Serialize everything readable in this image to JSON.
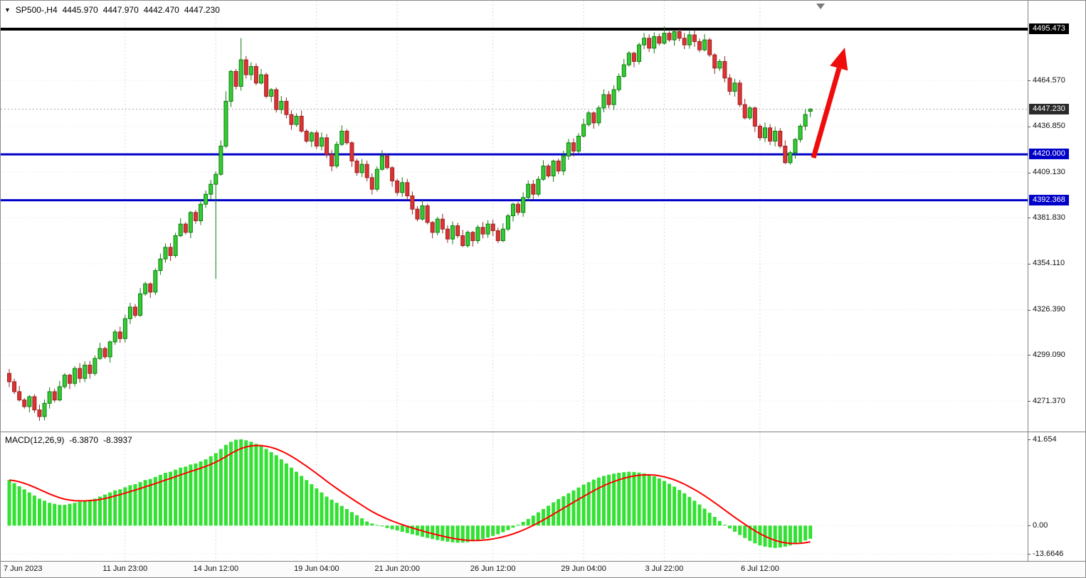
{
  "window": {
    "symbol_info": {
      "expander_icon": "▼",
      "symbol": "SP500-,H4",
      "open": "4445.970",
      "high": "4447.970",
      "low": "4442.470",
      "close": "4447.230"
    }
  },
  "colors": {
    "bull_fill": "#33cc33",
    "bull_border": "#0f7a0f",
    "bear_fill": "#dd3333",
    "bear_border": "#992222",
    "support_line": "#0000c8",
    "resistance_line": "#000000",
    "current_price_line": "#a8a8a8",
    "current_price_box": "#2b2b2b",
    "macd_histogram": "#32e132",
    "macd_signal": "#ff0000",
    "arrow": "#ee0c0c",
    "grid": "#e3e3e3"
  },
  "price_axis": {
    "levels": [
      "4464.570",
      "4436.850",
      "4409.130",
      "4381.830",
      "4354.110",
      "4326.390",
      "4299.090",
      "4271.370"
    ],
    "resistance_label": "4495.473",
    "current_label": "4447.230",
    "support_labels": [
      "4420.000",
      "4392.368"
    ]
  },
  "time_axis": {
    "labels": [
      {
        "text": "7 Jun 2023",
        "index": 0
      },
      {
        "text": "11 Jun 23:00",
        "index": 23
      },
      {
        "text": "14 Jun 12:00",
        "index": 41
      },
      {
        "text": "19 Jun 04:00",
        "index": 61
      },
      {
        "text": "21 Jun 20:00",
        "index": 77
      },
      {
        "text": "26 Jun 12:00",
        "index": 96
      },
      {
        "text": "29 Jun 04:00",
        "index": 114
      },
      {
        "text": "3 Jul 22:00",
        "index": 130
      },
      {
        "text": "6 Jul 12:00",
        "index": 149
      }
    ]
  },
  "macd_panel": {
    "label": "MACD(12,26,9)",
    "main_value": "-6.3870",
    "signal_value": "-8.3937",
    "axis": [
      {
        "text": "41.654",
        "value": 41.654
      },
      {
        "text": "0.00",
        "value": 0
      },
      {
        "text": "-13.6646",
        "value": -13.6646
      }
    ]
  },
  "chart_data": [
    {
      "type": "candlestick",
      "title": "SP500-,H4",
      "timeframe": "H4",
      "visible_price_range": [
        4262,
        4498
      ],
      "y_tick_values": [
        4464.57,
        4436.85,
        4409.13,
        4381.83,
        4354.11,
        4326.39,
        4299.09,
        4271.37
      ],
      "levels": {
        "resistance": 4495.473,
        "supports": [
          4420.0,
          4392.368
        ],
        "current_price": 4447.23
      },
      "first_open": 4288,
      "closes": [
        4283,
        4277,
        4272,
        4268,
        4274,
        4266,
        4262,
        4270,
        4277,
        4272,
        4280,
        4287,
        4282,
        4291,
        4285,
        4293,
        4288,
        4297,
        4303,
        4298,
        4307,
        4313,
        4309,
        4321,
        4328,
        4323,
        4336,
        4342,
        4337,
        4350,
        4357,
        4364,
        4359,
        4371,
        4378,
        4373,
        4385,
        4380,
        4390,
        4396,
        4402,
        4408,
        4425,
        4452,
        4470,
        4461,
        4477,
        4468,
        4473,
        4463,
        4468,
        4455,
        4459,
        4447,
        4452,
        4444,
        4438,
        4443,
        4434,
        4428,
        4433,
        4425,
        4430,
        4420,
        4413,
        4426,
        4434,
        4427,
        4416,
        4409,
        4414,
        4406,
        4399,
        4411,
        4419,
        4412,
        4404,
        4397,
        4403,
        4395,
        4387,
        4381,
        4389,
        4379,
        4373,
        4381,
        4375,
        4369,
        4377,
        4371,
        4365,
        4373,
        4368,
        4376,
        4372,
        4378,
        4374,
        4368,
        4375,
        4383,
        4390,
        4385,
        4394,
        4402,
        4396,
        4405,
        4413,
        4407,
        4416,
        4410,
        4419,
        4427,
        4422,
        4431,
        4438,
        4445,
        4439,
        4448,
        4456,
        4450,
        4459,
        4467,
        4474,
        4481,
        4476,
        4486,
        4490,
        4484,
        4491,
        4487,
        4493,
        4489,
        4494,
        4490,
        4486,
        4492,
        4488,
        4483,
        4489,
        4480,
        4472,
        4476,
        4466,
        4458,
        4463,
        4450,
        4442,
        4448,
        4437,
        4430,
        4436,
        4428,
        4434,
        4425,
        4415,
        4421,
        4429,
        4437,
        4444,
        4447.23
      ],
      "wick_pattern": [
        2.6,
        1.2,
        3.2,
        1.8,
        0.9,
        2.3,
        3.5,
        1.4
      ],
      "special_candles": {
        "41": {
          "low": 4345
        },
        "43": {
          "high": 4458
        },
        "46": {
          "high": 4490
        },
        "130": {
          "high": 4497
        },
        "159": {
          "open": 4445.97,
          "high": 4447.97,
          "low": 4442.47,
          "close": 4447.23
        }
      }
    },
    {
      "type": "macd",
      "params": "MACD(12,26,9)",
      "y_range": [
        -13.6646,
        41.654
      ],
      "current_main": -6.387,
      "current_signal": -8.3937,
      "signal_period": 9,
      "values": [
        22,
        20.5,
        19,
        17.5,
        16,
        14.5,
        13,
        12,
        11,
        10.5,
        10,
        10,
        10.5,
        11,
        11.5,
        12,
        12.5,
        13,
        14,
        15,
        16,
        17,
        17.5,
        18.5,
        19.5,
        20,
        21,
        22,
        22.5,
        23.5,
        24.5,
        25.5,
        26,
        27,
        28,
        28.5,
        29.5,
        30,
        31,
        32,
        33.5,
        35,
        37,
        39,
        40.5,
        41.5,
        41.654,
        41.2,
        40.5,
        39.5,
        38.5,
        37,
        35.5,
        34,
        32,
        30,
        28,
        26,
        24,
        22,
        20,
        18,
        16,
        14,
        12.5,
        11,
        9.5,
        8,
        6.5,
        5,
        3.5,
        2,
        1,
        0.3,
        -0.4,
        -1.2,
        -1.8,
        -2.4,
        -3,
        -3.6,
        -4.2,
        -4.8,
        -5.4,
        -6,
        -6.5,
        -7,
        -7.4,
        -7.8,
        -8.1,
        -8.3,
        -8.2,
        -8,
        -7.6,
        -7.1,
        -6.5,
        -5.8,
        -5,
        -4.2,
        -3.2,
        -2.2,
        -1,
        0.4,
        1.8,
        3.2,
        4.8,
        6.4,
        8,
        9.6,
        11.2,
        12.8,
        14.2,
        15.6,
        17,
        18.4,
        19.8,
        21,
        22.2,
        23.2,
        24,
        24.6,
        25.1,
        25.5,
        25.8,
        26,
        25.9,
        25.6,
        25.2,
        24.6,
        23.8,
        22.8,
        21.6,
        20.2,
        18.8,
        17.2,
        15.6,
        13.8,
        12,
        10.2,
        8.2,
        6.2,
        4.2,
        2.2,
        0.4,
        -1.4,
        -3,
        -4.6,
        -6,
        -7.4,
        -8.6,
        -9.6,
        -10.2,
        -10.6,
        -10.8,
        -10.6,
        -10.2,
        -9.6,
        -9,
        -8.2,
        -7.2,
        -6.387
      ]
    }
  ],
  "annotations": {
    "arrow": {
      "type": "up-trend-arrow",
      "direction": "up-right"
    }
  }
}
